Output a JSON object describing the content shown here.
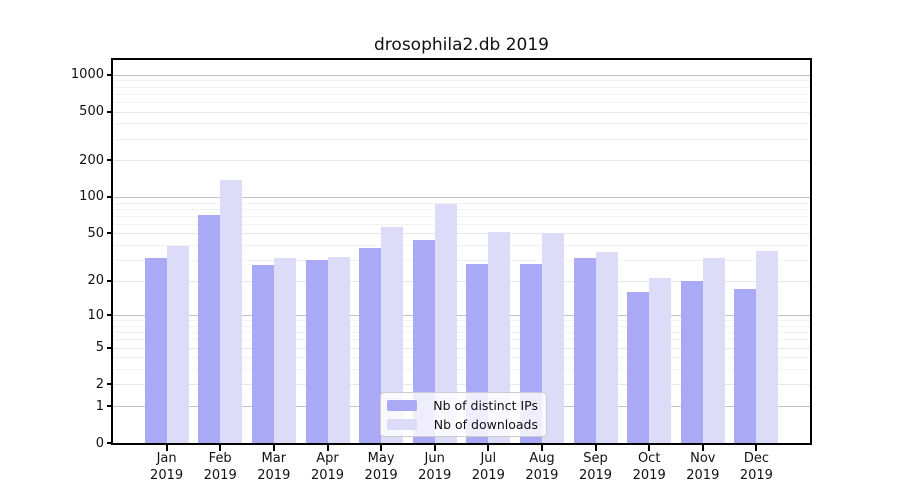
{
  "chart_data": {
    "type": "bar",
    "title": "drosophila2.db 2019",
    "categories": [
      "Jan",
      "Feb",
      "Mar",
      "Apr",
      "May",
      "Jun",
      "Jul",
      "Aug",
      "Sep",
      "Oct",
      "Nov",
      "Dec"
    ],
    "category_year": "2019",
    "series": [
      {
        "name": "Nb of distinct IPs",
        "color": "#a9a9f5",
        "values": [
          31,
          71,
          27,
          30,
          38,
          44,
          28,
          28,
          31,
          16,
          20,
          17
        ]
      },
      {
        "name": "Nb of downloads",
        "color": "#dcdcf9",
        "values": [
          39,
          137,
          31,
          32,
          56,
          88,
          51,
          50,
          35,
          21,
          31,
          36
        ]
      }
    ],
    "yscale": "log1p",
    "ylim": [
      0,
      1316
    ],
    "yticks": [
      0,
      1,
      2,
      5,
      10,
      20,
      50,
      100,
      200,
      500,
      1000
    ],
    "grid": true,
    "legend_position": "lower center",
    "xlabel": "",
    "ylabel": ""
  }
}
